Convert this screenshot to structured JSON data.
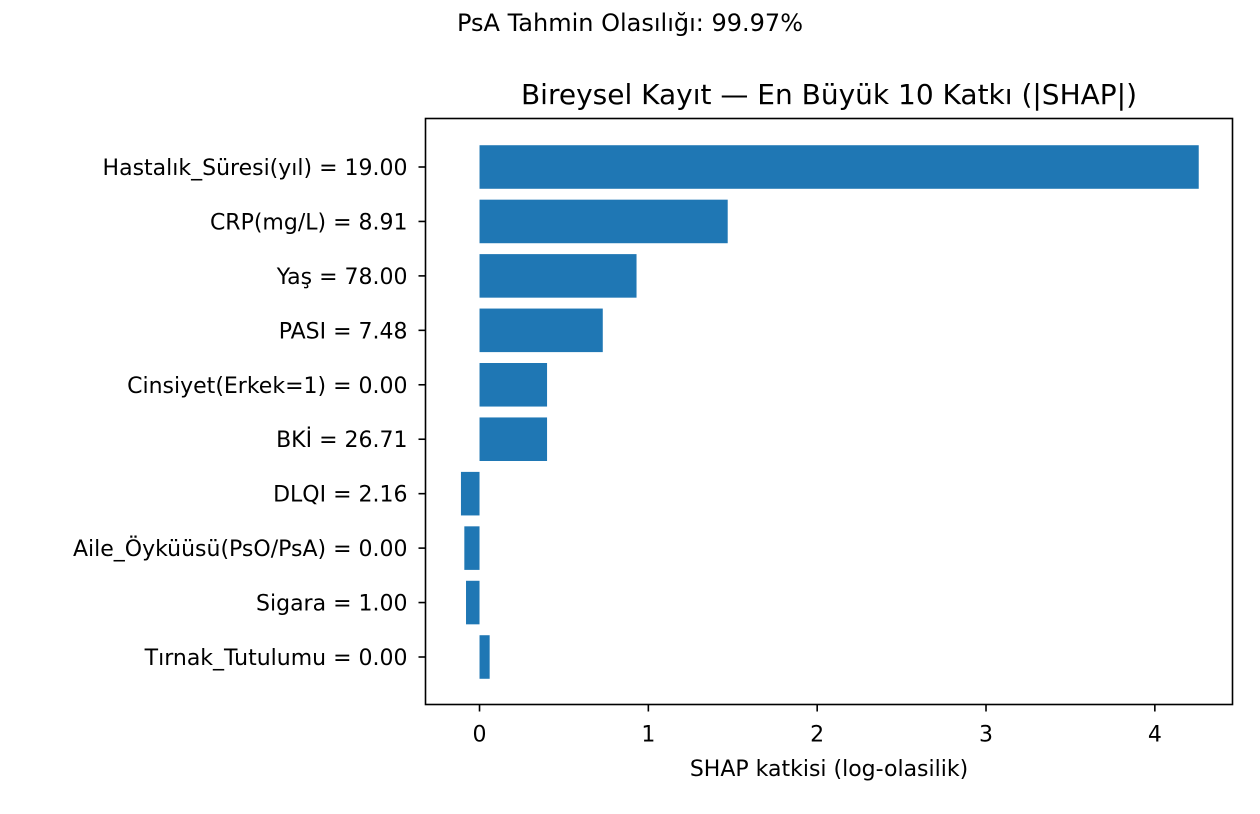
{
  "chart_data": {
    "type": "bar",
    "orientation": "horizontal",
    "suptitle": "PsA Tahmin Olasılığı: 99.97%",
    "title": "Bireysel Kayıt — En Büyük 10 Katkı (|SHAP|)",
    "xlabel": "SHAP katkisi (log-olasilik)",
    "ylabel": "",
    "xlim": [
      -0.32,
      4.46
    ],
    "xticks": [
      0,
      1,
      2,
      3,
      4
    ],
    "grid": false,
    "legend": "none",
    "bar_color": "#1f77b4",
    "categories": [
      "Hastalık_Süresi(yıl) = 19.00",
      "CRP(mg/L) = 8.91",
      "Yaş = 78.00",
      "PASI = 7.48",
      "Cinsiyet(Erkek=1) = 0.00",
      "BKİ = 26.71",
      "DLQI = 2.16",
      "Aile_Öyküüsü(PsO/PsA) = 0.00",
      "Sigara = 1.00",
      "Tırnak_Tutulumu = 0.00"
    ],
    "values": [
      4.26,
      1.47,
      0.93,
      0.73,
      0.4,
      0.4,
      -0.11,
      -0.09,
      -0.08,
      0.06
    ]
  }
}
